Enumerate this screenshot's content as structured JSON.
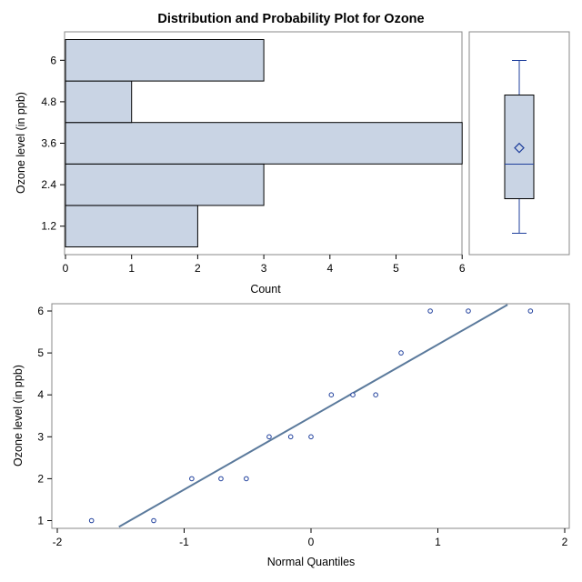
{
  "title": "Distribution and Probability Plot for Ozone",
  "colors": {
    "bar_fill": "#c9d4e4",
    "bar_stroke": "#000000",
    "frame": "#888888",
    "box_line": "#1f3f9c",
    "qq_line": "#5b7a9c",
    "marker": "#1f3f9c"
  },
  "chart_data": [
    {
      "type": "bar",
      "orientation": "horizontal",
      "name": "histogram",
      "bins": [
        {
          "center": 1.2,
          "count": 2
        },
        {
          "center": 2.4,
          "count": 3
        },
        {
          "center": 3.6,
          "count": 6
        },
        {
          "center": 4.8,
          "count": 1
        },
        {
          "center": 6.0,
          "count": 3
        }
      ],
      "bin_width": 1.2,
      "xlabel": "Count",
      "ylabel": "Ozone level (in ppb)",
      "x_ticks": [
        "0",
        "1",
        "2",
        "3",
        "4",
        "5",
        "6"
      ],
      "y_ticks": [
        "1.2",
        "2.4",
        "3.6",
        "4.8",
        "6"
      ],
      "xlim": [
        0,
        6
      ],
      "ylim": [
        0.6,
        6.6
      ]
    },
    {
      "type": "box",
      "name": "boxplot",
      "min": 1,
      "q1": 2,
      "median": 3,
      "q3": 5,
      "max": 6,
      "mean": 3.47,
      "ylim": [
        0.6,
        6.6
      ]
    },
    {
      "type": "scatter",
      "name": "normal-probability-plot",
      "xlabel": "Normal Quantiles",
      "ylabel": "Ozone level (in ppb)",
      "x_ticks": [
        "-2",
        "-1",
        "0",
        "1",
        "2"
      ],
      "y_ticks": [
        "1",
        "2",
        "3",
        "4",
        "5",
        "6"
      ],
      "xlim": [
        -2.1,
        2.1
      ],
      "ylim": [
        0.85,
        6.15
      ],
      "points": [
        {
          "x": -1.73,
          "y": 1
        },
        {
          "x": -1.24,
          "y": 1
        },
        {
          "x": -0.94,
          "y": 2
        },
        {
          "x": -0.71,
          "y": 2
        },
        {
          "x": -0.51,
          "y": 2
        },
        {
          "x": -0.33,
          "y": 3
        },
        {
          "x": -0.16,
          "y": 3
        },
        {
          "x": 0.0,
          "y": 3
        },
        {
          "x": 0.16,
          "y": 4
        },
        {
          "x": 0.33,
          "y": 4
        },
        {
          "x": 0.51,
          "y": 4
        },
        {
          "x": 0.71,
          "y": 5
        },
        {
          "x": 0.94,
          "y": 6
        },
        {
          "x": 1.24,
          "y": 6
        },
        {
          "x": 1.73,
          "y": 6
        }
      ],
      "reference_line": {
        "intercept": 3.47,
        "slope": 1.73
      }
    }
  ]
}
